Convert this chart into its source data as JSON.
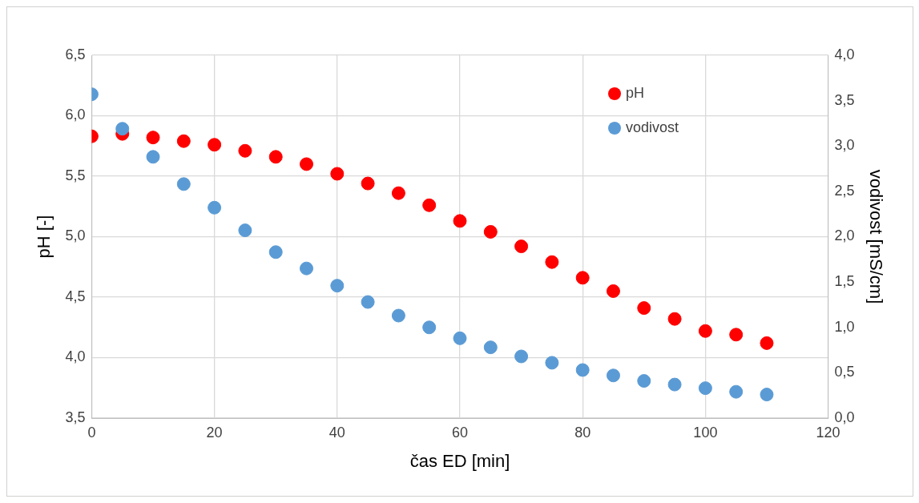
{
  "chart_data": {
    "type": "scatter",
    "xlabel": "čas ED [min]",
    "ylabel": "pH [-]",
    "y2label": "vodivost [mS/cm]",
    "x": [
      0,
      5,
      10,
      15,
      20,
      25,
      30,
      35,
      40,
      45,
      50,
      55,
      60,
      65,
      70,
      75,
      80,
      85,
      90,
      95,
      100,
      105,
      110
    ],
    "series": [
      {
        "name": "pH",
        "color": "#ff0000",
        "values": [
          5.83,
          5.85,
          5.82,
          5.79,
          5.76,
          5.71,
          5.66,
          5.6,
          5.52,
          5.44,
          5.36,
          5.26,
          5.13,
          5.04,
          4.92,
          4.79,
          4.66,
          4.55,
          4.41,
          4.32,
          4.22,
          4.19,
          4.12
        ]
      },
      {
        "name": "vodivost",
        "color": "#5b9bd5",
        "axis": "y2",
        "values": [
          3.57,
          3.19,
          2.88,
          2.58,
          2.32,
          2.07,
          1.83,
          1.65,
          1.46,
          1.28,
          1.13,
          1.0,
          0.88,
          0.78,
          0.68,
          0.61,
          0.53,
          0.47,
          0.41,
          0.37,
          0.33,
          0.29,
          0.26
        ]
      }
    ],
    "xlim": [
      0,
      120
    ],
    "xticks": [
      0,
      20,
      40,
      60,
      80,
      100,
      120
    ],
    "ylim": [
      3.5,
      6.5
    ],
    "yticks": [
      {
        "value": 3.5,
        "label": "3,5"
      },
      {
        "value": 4,
        "label": "4,0"
      },
      {
        "value": 4.5,
        "label": "4,5"
      },
      {
        "value": 5,
        "label": "5,0"
      },
      {
        "value": 5.5,
        "label": "5,5"
      },
      {
        "value": 6,
        "label": "6,0"
      },
      {
        "value": 6.5,
        "label": "6,5"
      }
    ],
    "y2lim": [
      0,
      4
    ],
    "y2ticks": [
      {
        "value": 0,
        "label": "0,0"
      },
      {
        "value": 0.5,
        "label": "0,5"
      },
      {
        "value": 1,
        "label": "1,0"
      },
      {
        "value": 1.5,
        "label": "1,5"
      },
      {
        "value": 2,
        "label": "2,0"
      },
      {
        "value": 2.5,
        "label": "2,5"
      },
      {
        "value": 3,
        "label": "3,0"
      },
      {
        "value": 3.5,
        "label": "3,5"
      },
      {
        "value": 4,
        "label": "4,0"
      }
    ],
    "grid": true,
    "legend": "top right",
    "marker": "circle"
  }
}
